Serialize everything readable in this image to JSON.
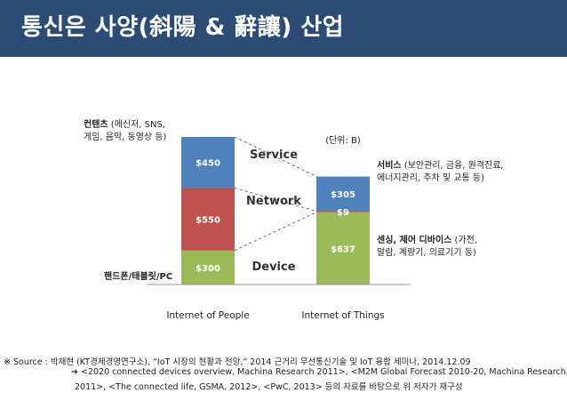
{
  "title": "통신은 사양(斜陽 & 辭讓) 산업",
  "chart_data": {
    "type": "bar",
    "stacked": true,
    "categories": [
      "Internet of People",
      "Internet of Things"
    ],
    "series": [
      {
        "name": "Device",
        "values": [
          300,
          637
        ],
        "labels": [
          "$300",
          "$637"
        ],
        "color": "#9bbb59"
      },
      {
        "name": "Network",
        "values": [
          550,
          9
        ],
        "labels": [
          "$550",
          "$9"
        ],
        "color": "#c0504d"
      },
      {
        "name": "Service",
        "values": [
          450,
          305
        ],
        "labels": [
          "$450",
          "$305"
        ],
        "color": "#4f81bd"
      }
    ],
    "unit_note": "(단위: B)"
  },
  "annotations": {
    "content": {
      "bold": "컨텐츠",
      "rest": " (메신저, SNS,",
      "line2": "게임, 음악, 동영상 등)"
    },
    "handset": "핸드폰/태블릿/PC",
    "service": {
      "bold": "서비스",
      "rest": " (보안관리, 금융, 원격진료,",
      "line2": "에너지관리, 주차 및 교통 등)"
    },
    "sensing": {
      "bold": "센싱, 제어 디바이스",
      "rest": " (가전,",
      "line2": "알람, 계량기, 의료기기 등)"
    }
  },
  "source": {
    "line1": "※ Source : 박재현 (KT경제경영연구소), “IoT 시장의 현황과 전망,” 2014 근거리 무선통신기술 및 IoT 융합 세미나, 2014.12.09",
    "line2": "➔ <2020 connected devices overview, Machina Research 2011>, <M2M Global Forecast 2010-20, Machina Research,",
    "line3": "2011>, <The connected life, GSMA, 2012>, <PwC, 2013> 등의 자료를 바탕으로 위 저자가 재구성"
  }
}
